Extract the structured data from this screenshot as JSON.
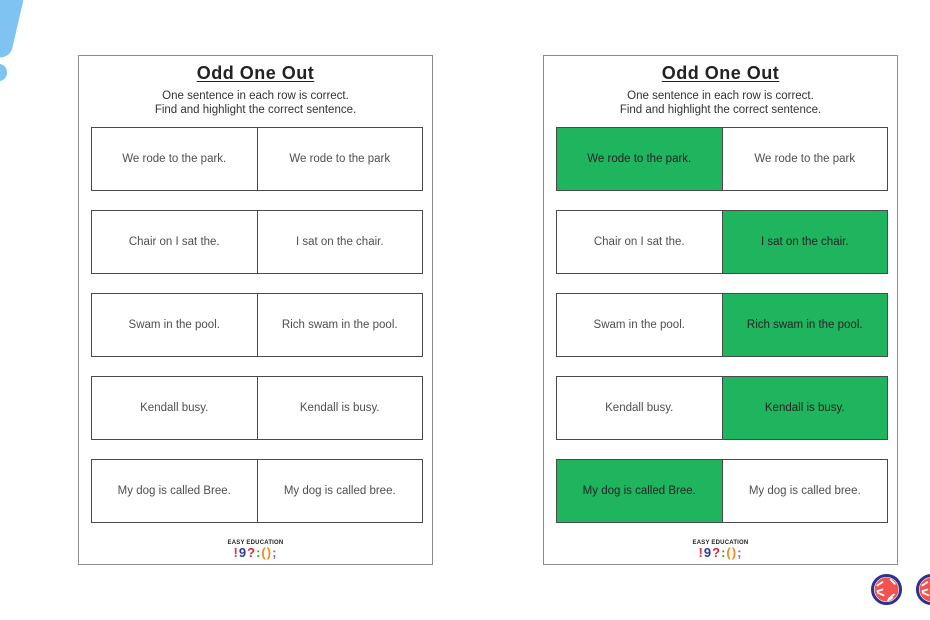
{
  "worksheet": {
    "title": "Odd One Out",
    "instructions_line1": "One sentence in each row is correct.",
    "instructions_line2": "Find and highlight the correct sentence.",
    "rows": [
      {
        "left": "We rode to the park.",
        "right": "We rode to the park"
      },
      {
        "left": "Chair on I sat the.",
        "right": "I sat on the chair."
      },
      {
        "left": "Swam in the pool.",
        "right": "Rich swam in the pool."
      },
      {
        "left": "Kendall busy.",
        "right": "Kendall is busy."
      },
      {
        "left": "My dog is called Bree.",
        "right": "My dog is called bree."
      }
    ],
    "answers": [
      "left",
      "right",
      "right",
      "right",
      "left"
    ]
  },
  "logo": {
    "brand": "EASY EDUCATION",
    "symbols": [
      {
        "char": "!",
        "color": "#e62e32"
      },
      {
        "char": "9",
        "color": "#2d3a96"
      },
      {
        "char": "?",
        "color": "#d6273a"
      },
      {
        "char": ":",
        "color": "#2f9e3f"
      },
      {
        "char": "(",
        "color": "#f08a1d"
      },
      {
        "char": ")",
        "color": "#f08a1d"
      },
      {
        "char": ";",
        "color": "#9b59b6"
      }
    ]
  },
  "colors": {
    "highlight_green": "#1fb45e",
    "highlight_text": "#242424",
    "cell_border": "#4a4a4a",
    "page_border": "#8c8c8c",
    "decor_blue": "#7ec3f2",
    "ball_red": "#f4524e",
    "ball_ring": "#2e3192"
  }
}
